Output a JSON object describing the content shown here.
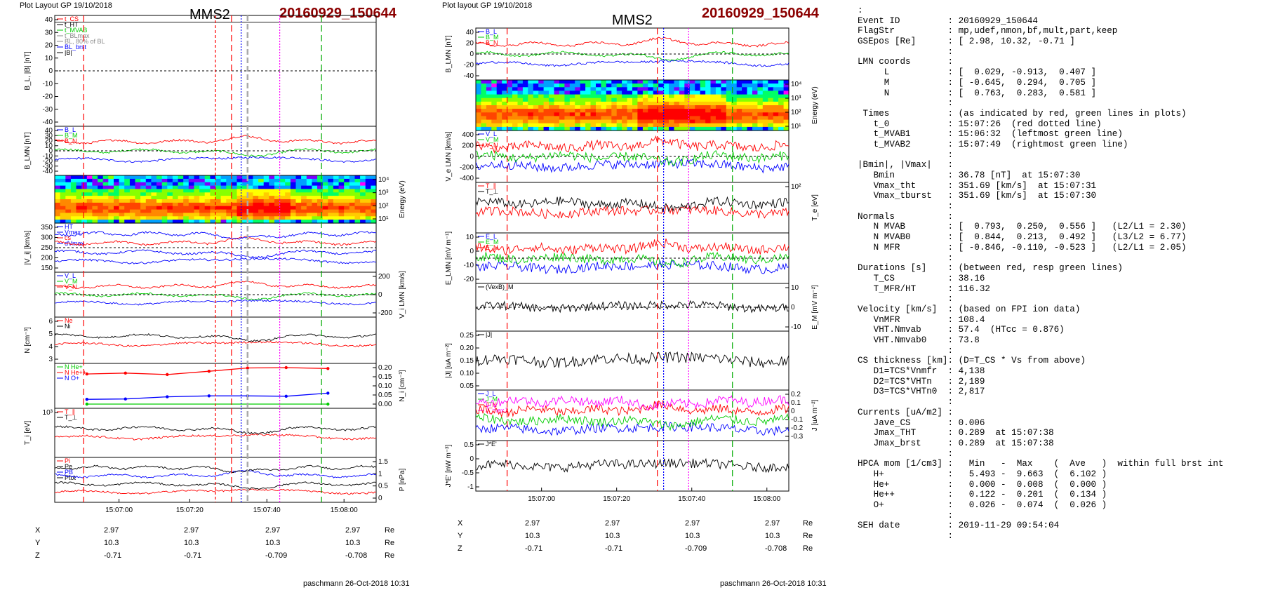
{
  "left": {
    "header": "Plot Layout GP 19/10/2018",
    "spacecraft": "MMS2",
    "event_id": "20160929_150644",
    "footer": "paschmann 26-Oct-2018 10:31"
  },
  "middle": {
    "header": "Plot layout GP 19/10/2018",
    "spacecraft": "MMS2",
    "event_id": "20160929_150644",
    "footer": "paschmann 26-Oct-2018 10:31"
  },
  "chart_data": [
    {
      "id": "left-panels",
      "type": "line",
      "x_ticks": [
        "15:07:00",
        "15:07:20",
        "15:07:40",
        "15:08:00"
      ],
      "vertical_markers": [
        {
          "color": "#ff0000",
          "style": "long-dash"
        },
        {
          "color": "#ff0000",
          "style": "short-dash"
        },
        {
          "color": "#ff0000",
          "style": "long-dash"
        },
        {
          "color": "#0000ff",
          "style": "dotted"
        },
        {
          "color": "#aaaaaa",
          "style": "thick-dash"
        },
        {
          "color": "#ff00ff",
          "style": "dotted"
        },
        {
          "color": "#00aa00",
          "style": "long-dash"
        }
      ],
      "panels": [
        {
          "ylabel": "B_L, |B| [nT]",
          "ylabel_side": "left",
          "y_ticks": [
            40,
            30,
            20,
            10,
            0,
            -10,
            -20,
            -30,
            -40
          ],
          "legend": [
            "t_CS",
            "t_HT",
            "t_MVAB",
            "t_BLmax",
            "BL, 80% of BL",
            "BL_brst",
            "|B|"
          ]
        },
        {
          "ylabel": "B_LMN [nT]",
          "ylabel_side": "left",
          "y_ticks": [
            40,
            30,
            20,
            10,
            0,
            -10,
            -20,
            -30,
            -40
          ],
          "legend": [
            "B_L",
            "B_M",
            "B_N"
          ]
        },
        {
          "ylabel": "Energy (eV)",
          "ylabel_side": "right",
          "y_ticks": [
            "10^4",
            "10^3",
            "10^2",
            "10^1"
          ],
          "kind": "spectrogram"
        },
        {
          "ylabel": "|V_i| [km/s]",
          "ylabel_side": "left",
          "y_ticks": [
            350,
            300,
            250,
            200,
            150
          ],
          "legend": [
            "HT",
            "Vmax",
            "cs",
            "dVmax"
          ]
        },
        {
          "ylabel": "V_i LMN [km/s]",
          "ylabel_side": "right",
          "y_ticks": [
            200,
            0,
            -200
          ],
          "legend": [
            "V_L",
            "V_M",
            "V_N"
          ]
        },
        {
          "ylabel": "N [cm^-3]",
          "ylabel_side": "left",
          "y_ticks": [
            6,
            5,
            4,
            3
          ],
          "legend": [
            "Ne",
            "Ni"
          ]
        },
        {
          "ylabel": "N_i [cm^-3]",
          "ylabel_side": "right",
          "y_ticks": [
            0.2,
            0.15,
            0.1,
            0.05,
            0.0
          ],
          "y_tick_labels": [
            "0.20",
            "0.15",
            "0.10",
            "0.05",
            "0.00"
          ],
          "legend": [
            "N He+",
            "N He++",
            "N O+"
          ],
          "series": [
            {
              "name": "N He++",
              "color": "#ff0000",
              "x": [
                0.1,
                0.22,
                0.35,
                0.48,
                0.6,
                0.72,
                0.85
              ],
              "values": [
                0.165,
                0.17,
                0.162,
                0.18,
                0.198,
                0.2,
                0.195
              ]
            },
            {
              "name": "N O+",
              "color": "#0000ff",
              "x": [
                0.1,
                0.22,
                0.35,
                0.48,
                0.6,
                0.72,
                0.85
              ],
              "values": [
                0.026,
                0.028,
                0.04,
                0.045,
                0.045,
                0.043,
                0.06
              ]
            },
            {
              "name": "N He+",
              "color": "#00cc00",
              "x": [
                0.1,
                0.85
              ],
              "values": [
                0.0,
                0.0
              ]
            }
          ]
        },
        {
          "ylabel": "T_i [eV]",
          "ylabel_side": "left",
          "y_ticks": [
            "10^3"
          ],
          "legend": [
            "T_||",
            "T_perp"
          ]
        },
        {
          "ylabel": "P [nPa]",
          "ylabel_side": "right",
          "y_ticks": [
            1.5,
            1.0,
            0.5,
            0.0
          ],
          "legend": [
            "Pi",
            "Pe",
            "PB",
            "Ptot"
          ]
        }
      ],
      "ephemeris": {
        "X": [
          "2.97",
          "2.97",
          "2.97",
          "2.97"
        ],
        "Y": [
          "10.3",
          "10.3",
          "10.3",
          "10.3"
        ],
        "Z": [
          "-0.71",
          "-0.71",
          "-0.709",
          "-0.708"
        ],
        "unit": "Re"
      }
    },
    {
      "id": "middle-panels",
      "type": "line",
      "x_ticks": [
        "15:07:00",
        "15:07:20",
        "15:07:40",
        "15:08:00"
      ],
      "vertical_markers": [
        {
          "color": "#ff0000",
          "style": "long-dash"
        },
        {
          "color": "#ff0000",
          "style": "long-dash"
        },
        {
          "color": "#0000ff",
          "style": "dotted"
        },
        {
          "color": "#ff00ff",
          "style": "dotted"
        },
        {
          "color": "#00aa00",
          "style": "long-dash"
        }
      ],
      "panels": [
        {
          "ylabel": "B_LMN [nT]",
          "ylabel_side": "left",
          "y_ticks": [
            40,
            20,
            0,
            -20,
            -40
          ],
          "legend": [
            "B_L",
            "B_M",
            "B_N"
          ]
        },
        {
          "ylabel": "Energy (eV)",
          "ylabel_side": "right",
          "y_ticks": [
            "10^4",
            "10^3",
            "10^2",
            "10^1"
          ],
          "kind": "spectrogram"
        },
        {
          "ylabel": "V_e LMN [km/s]",
          "ylabel_side": "left",
          "y_ticks": [
            400,
            200,
            0,
            -200,
            -400
          ],
          "legend": [
            "V_L",
            "V_M",
            "V_N"
          ]
        },
        {
          "ylabel": "T_e [eV]",
          "ylabel_side": "right",
          "y_ticks": [
            "10^2"
          ],
          "legend": [
            "T_||",
            "T_perp"
          ]
        },
        {
          "ylabel": "E_LMN [mV m^-1]",
          "ylabel_side": "left",
          "y_ticks": [
            10,
            0,
            -10,
            -20
          ],
          "legend": [
            "E_L",
            "E_M",
            "E_N"
          ]
        },
        {
          "ylabel": "E_M [mV m^-2]",
          "ylabel_side": "right",
          "y_ticks": [
            10,
            0,
            -10
          ],
          "legend": [
            "(VexB)_M"
          ]
        },
        {
          "ylabel": "|J| [uA m^-2]",
          "ylabel_side": "left",
          "y_ticks": [
            0.25,
            0.2,
            0.15,
            0.1,
            0.05
          ],
          "y_tick_labels": [
            "0.25",
            "0.20",
            "0.15",
            "0.10",
            "0.05"
          ],
          "legend": [
            "|J|"
          ]
        },
        {
          "ylabel": "J [uA m^-2]",
          "ylabel_side": "right",
          "y_ticks": [
            0.2,
            0.1,
            0.0,
            -0.1,
            -0.2,
            -0.3
          ],
          "legend": [
            "J_L",
            "J_M",
            "J_N",
            "J_maxJ"
          ]
        },
        {
          "ylabel": "J*E' [nW m^-3]",
          "ylabel_side": "left",
          "y_ticks": [
            0.5,
            0.0,
            -0.5,
            -1.0
          ],
          "legend": [
            "J*E'"
          ]
        }
      ],
      "ephemeris": {
        "X": [
          "2.97",
          "2.97",
          "2.97",
          "2.97"
        ],
        "Y": [
          "10.3",
          "10.3",
          "10.3",
          "10.3"
        ],
        "Z": [
          "-0.71",
          "-0.71",
          "-0.709",
          "-0.708"
        ],
        "unit": "Re"
      }
    }
  ],
  "info_panel": [
    ":",
    "Event ID         : 20160929_150644",
    "FlagStr          : mp,udef,nmon,bf,mult,part,keep",
    "GSEpos [Re]      : [ 2.98, 10.32, -0.71 ]",
    "                 :",
    "LMN coords       :",
    "     L           : [  0.029, -0.913,  0.407 ]",
    "     M           : [ -0.645,  0.294,  0.705 ]",
    "     N           : [  0.763,  0.283,  0.581 ]",
    "                 :",
    " Times           : (as indicated by red, green lines in plots)",
    "   t_0           : 15:07:26  (red dotted line)",
    "   t_MVAB1       : 15:06:32  (leftmost green line)",
    "   t_MVAB2       : 15:07:49  (rightmost green line)",
    "                 :",
    "|Bmin|, |Vmax|   :",
    "   Bmin          : 36.78 [nT]  at 15:07:30",
    "   Vmax_tht      : 351.69 [km/s]  at 15:07:31",
    "   Vmax_tburst   : 351.69 [km/s]  at 15:07:30",
    "                 :",
    "Normals          :",
    "   N MVAB        : [  0.793,  0.250,  0.556 ]   (L2/L1 = 2.30)",
    "   N MVAB0       : [  0.844,  0.213,  0.492 ]   (L3/L2 = 6.77)",
    "   N MFR         : [ -0.846, -0.110, -0.523 ]   (L2/L1 = 2.05)",
    "                 :",
    "Durations [s]    : (between red, resp green lines)",
    "   T_CS          : 38.16",
    "   T_MFR/HT      : 116.32",
    "                 :",
    "Velocity [km/s]  : (based on FPI ion data)",
    "   VnMFR         : 108.4",
    "   VHT.Nmvab     : 57.4  (HTcc = 0.876)",
    "   VHT.Nmvab0    : 73.8",
    "                 :",
    "CS thickness [km]: (D=T_CS * Vs from above)",
    "   D1=TCS*Vnmfr  : 4,138",
    "   D2=TCS*VHTn   : 2,189",
    "   D3=TCS*VHTn0  : 2,817",
    "                 :",
    "Currents [uA/m2] :",
    "   Jave_CS       : 0.006",
    "   Jmax_THT      : 0.289  at 15:07:38",
    "   Jmax_brst     : 0.289  at 15:07:38",
    "                 :",
    "HPCA mom [1/cm3] :   Min   -  Max    (  Ave   )  within full brst int",
    "   H+            :   5.493 -  9.663  (  6.102 )",
    "   He+           :   0.000 -  0.008  (  0.000 )",
    "   He++          :   0.122 -  0.201  (  0.134 )",
    "   O+            :   0.026 -  0.074  (  0.026 )",
    "                 :",
    "SEH date         : 2019-11-29 09:54:04",
    "                 :"
  ],
  "colors": {
    "event_id": "#8b0000",
    "red": "#ff0000",
    "blue": "#0000ff",
    "green": "#00cc00",
    "magenta": "#ff00ff",
    "black": "#000000",
    "grey": "#888888"
  }
}
